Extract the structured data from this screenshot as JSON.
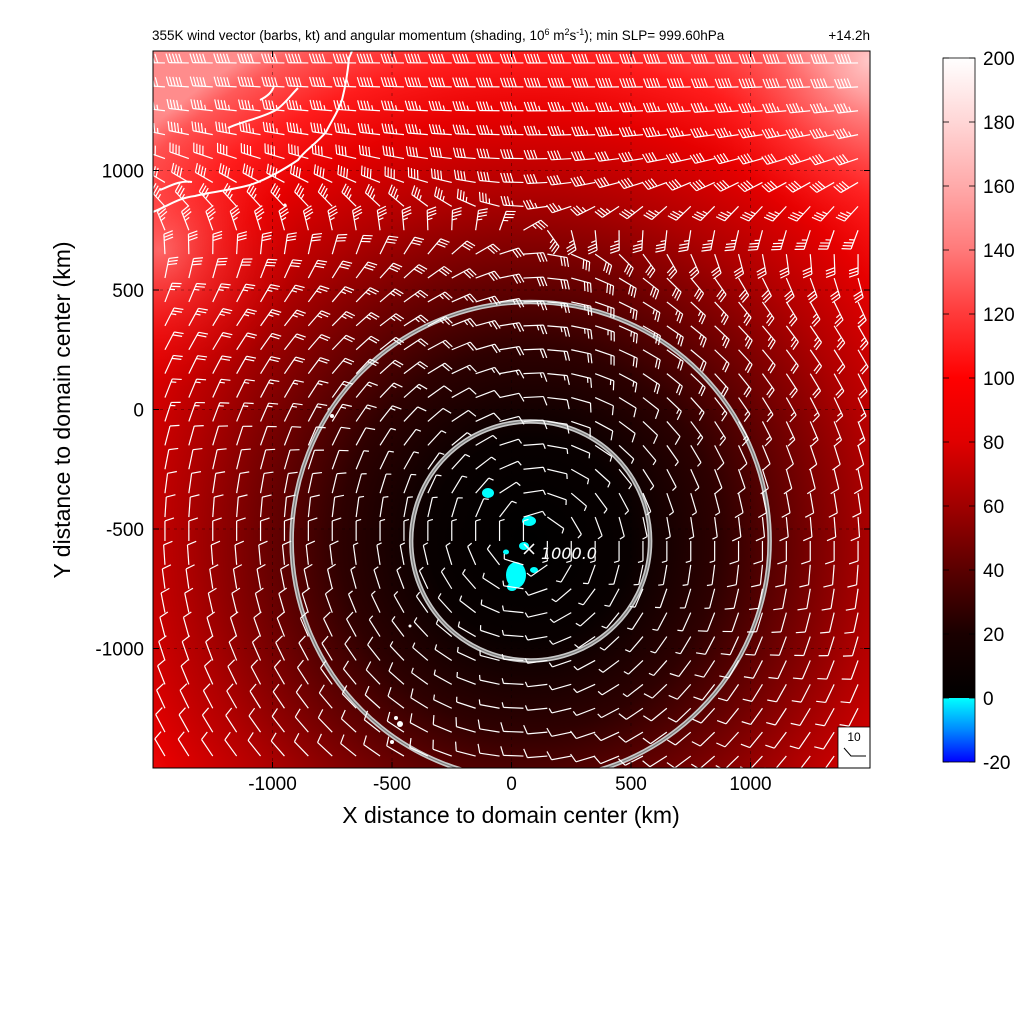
{
  "chart_data": {
    "type": "heatmap",
    "title": "355K wind vector (barbs, kt) and angular momentum (shading, 10",
    "title_sup1": "6",
    "title_units_mid": " m",
    "title_sup2": "2",
    "title_units_s": "s",
    "title_sup3": "-1",
    "title_tail": "); min SLP= 999.60hPa",
    "time_label": "+14.2h",
    "xlabel": "X distance to domain center (km)",
    "ylabel": "Y distance to domain center (km)",
    "xlim": [
      -1500,
      1500
    ],
    "ylim": [
      -1500,
      1500
    ],
    "x_ticks": [
      {
        "value": -1000,
        "label": "-1000"
      },
      {
        "value": -500,
        "label": "-500"
      },
      {
        "value": 0,
        "label": "0"
      },
      {
        "value": 500,
        "label": "500"
      },
      {
        "value": 1000,
        "label": "1000"
      }
    ],
    "y_ticks": [
      {
        "value": 1000,
        "label": "1000"
      },
      {
        "value": 500,
        "label": "500"
      },
      {
        "value": 0,
        "label": "0"
      },
      {
        "value": -500,
        "label": "-500"
      },
      {
        "value": -1000,
        "label": "-1000"
      }
    ],
    "grid": true,
    "storm_center": {
      "x": 80,
      "y": -550
    },
    "range_rings_km": [
      500,
      1000
    ],
    "slp_contour": {
      "label": "1000.0",
      "x": 90,
      "y": -600
    },
    "shading_field": "angular momentum",
    "colorbar": {
      "min": -20,
      "max": 200,
      "ticks": [
        {
          "value": 200,
          "label": "200"
        },
        {
          "value": 180,
          "label": "180"
        },
        {
          "value": 160,
          "label": "160"
        },
        {
          "value": 140,
          "label": "140"
        },
        {
          "value": 120,
          "label": "120"
        },
        {
          "value": 100,
          "label": "100"
        },
        {
          "value": 80,
          "label": "80"
        },
        {
          "value": 60,
          "label": "60"
        },
        {
          "value": 40,
          "label": "40"
        },
        {
          "value": 20,
          "label": "20"
        },
        {
          "value": 0,
          "label": "0"
        },
        {
          "value": -20,
          "label": "-20"
        }
      ],
      "stops": [
        {
          "value": -20,
          "color": "#0000ff"
        },
        {
          "value": -10,
          "color": "#0088ff"
        },
        {
          "value": -0.01,
          "color": "#00ffff"
        },
        {
          "value": 0,
          "color": "#000000"
        },
        {
          "value": 20,
          "color": "#1a0000"
        },
        {
          "value": 40,
          "color": "#5a0000"
        },
        {
          "value": 60,
          "color": "#a00000"
        },
        {
          "value": 80,
          "color": "#e00000"
        },
        {
          "value": 100,
          "color": "#ff0000"
        },
        {
          "value": 120,
          "color": "#ff3a3a"
        },
        {
          "value": 140,
          "color": "#ff7a7a"
        },
        {
          "value": 160,
          "color": "#ffaaaa"
        },
        {
          "value": 180,
          "color": "#ffd6d6"
        },
        {
          "value": 200,
          "color": "#ffffff"
        }
      ]
    },
    "reference_barb": {
      "speed_kt": 10,
      "label": "10"
    },
    "wind_barb_grid_spacing_km": 100
  }
}
